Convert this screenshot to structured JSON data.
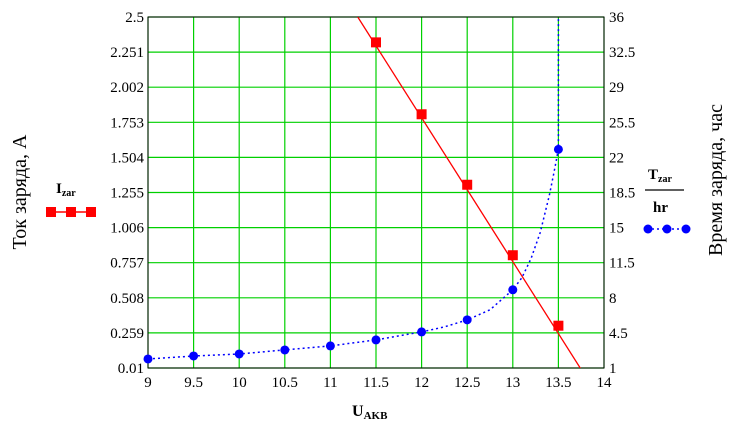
{
  "chart_data": {
    "type": "line",
    "grid": true,
    "xlim": [
      9,
      14
    ],
    "x_ticks": [
      "9",
      "9.5",
      "10",
      "10.5",
      "11",
      "11.5",
      "12",
      "12.5",
      "13",
      "13.5",
      "14"
    ],
    "x_label": {
      "main": "U",
      "sub": "AKB"
    },
    "y_left": {
      "label": "Ток заряда, А",
      "lim": [
        0.01,
        2.5
      ],
      "ticks": [
        "0.01",
        "0.259",
        "0.508",
        "0.757",
        "1.006",
        "1.255",
        "1.504",
        "1.753",
        "2.002",
        "2.251",
        "2.5"
      ]
    },
    "y_right": {
      "label": "Время заряда, час",
      "lim": [
        1,
        36
      ],
      "ticks": [
        "1",
        "4.5",
        "8",
        "11.5",
        "15",
        "18.5",
        "22",
        "25.5",
        "29",
        "32.5",
        "36"
      ]
    },
    "series": [
      {
        "legend_main": "I",
        "legend_sub": "zar",
        "axis": "left",
        "color": "#ff0000",
        "marker": "square",
        "line_style": "solid",
        "line_x": [
          11.3,
          13.8
        ],
        "line_y": [
          2.5,
          -0.052
        ],
        "marker_x": [
          11.5,
          12,
          12.5,
          13,
          13.5
        ],
        "marker_y": [
          2.32,
          1.81,
          1.31,
          0.81,
          0.31
        ]
      },
      {
        "legend_main": "T",
        "legend_sub": "zar",
        "legend_den": "hr",
        "axis": "right",
        "color": "#0000ff",
        "marker": "circle",
        "line_style": "dotted",
        "curve_x": [
          9,
          9.5,
          10,
          10.5,
          11,
          11.25,
          11.5,
          11.75,
          12,
          12.25,
          12.5,
          12.75,
          13,
          13.1,
          13.2,
          13.3,
          13.4,
          13.45,
          13.5,
          13.5
        ],
        "curve_y": [
          1.9,
          2.2,
          2.4,
          2.8,
          3.2,
          3.5,
          3.8,
          4.2,
          4.6,
          5.1,
          5.8,
          6.8,
          8.8,
          10.0,
          11.9,
          14.5,
          18.2,
          20.4,
          22.8,
          36
        ],
        "marker_x": [
          9,
          9.5,
          10,
          10.5,
          11,
          11.5,
          12,
          12.5,
          13,
          13.5
        ],
        "marker_y": [
          1.9,
          2.2,
          2.4,
          2.8,
          3.2,
          3.8,
          4.6,
          5.8,
          8.8,
          22.8
        ]
      }
    ]
  }
}
